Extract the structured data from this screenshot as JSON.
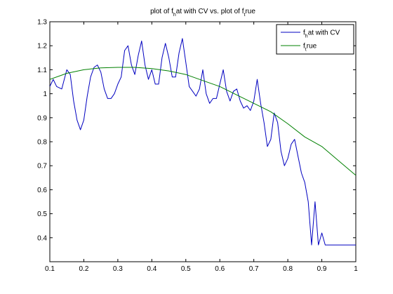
{
  "chart_data": {
    "type": "line",
    "title": {
      "parts": [
        {
          "text": "plot of f",
          "sub": false
        },
        {
          "text": "h",
          "sub": true
        },
        {
          "text": "at with CV vs. plot of f",
          "sub": false
        },
        {
          "text": "t",
          "sub": true
        },
        {
          "text": "rue",
          "sub": false
        }
      ]
    },
    "xlabel": "",
    "ylabel": "",
    "xlim": [
      0.1,
      1.0
    ],
    "ylim": [
      0.3,
      1.3
    ],
    "x_ticks": [
      0.1,
      0.2,
      0.3,
      0.4,
      0.5,
      0.6,
      0.7,
      0.8,
      0.9,
      1.0
    ],
    "x_tick_labels": [
      "0.1",
      "0.2",
      "0.3",
      "0.4",
      "0.5",
      "0.6",
      "0.7",
      "0.8",
      "0.9",
      "1"
    ],
    "y_ticks": [
      0.4,
      0.5,
      0.6,
      0.7,
      0.8,
      0.9,
      1.0,
      1.1,
      1.2,
      1.3
    ],
    "y_tick_labels": [
      "0.4",
      "0.5",
      "0.6",
      "0.7",
      "0.8",
      "0.9",
      "1",
      "1.1",
      "1.2",
      "1.3"
    ],
    "grid": false,
    "legend_position": "top-right",
    "series": [
      {
        "name": "f_hat with CV",
        "legend_parts": [
          {
            "text": "f",
            "sub": false
          },
          {
            "text": "h",
            "sub": true
          },
          {
            "text": "at with CV",
            "sub": false
          }
        ],
        "color": "#0000c0",
        "x": [
          0.1,
          0.11,
          0.12,
          0.135,
          0.15,
          0.16,
          0.17,
          0.18,
          0.19,
          0.2,
          0.21,
          0.22,
          0.23,
          0.24,
          0.25,
          0.26,
          0.27,
          0.28,
          0.29,
          0.3,
          0.31,
          0.32,
          0.33,
          0.34,
          0.35,
          0.36,
          0.37,
          0.38,
          0.39,
          0.4,
          0.41,
          0.42,
          0.43,
          0.44,
          0.45,
          0.46,
          0.47,
          0.48,
          0.49,
          0.5,
          0.51,
          0.52,
          0.53,
          0.54,
          0.55,
          0.56,
          0.57,
          0.58,
          0.59,
          0.6,
          0.61,
          0.62,
          0.63,
          0.64,
          0.65,
          0.66,
          0.67,
          0.68,
          0.69,
          0.7,
          0.71,
          0.72,
          0.73,
          0.74,
          0.75,
          0.76,
          0.77,
          0.78,
          0.79,
          0.8,
          0.81,
          0.82,
          0.83,
          0.84,
          0.85,
          0.86,
          0.87,
          0.88,
          0.89,
          0.9,
          0.91,
          0.92,
          0.93,
          0.94,
          0.95,
          0.96,
          0.97,
          0.98,
          0.99,
          0.995,
          1.0
        ],
        "y": [
          1.03,
          1.06,
          1.03,
          1.02,
          1.1,
          1.08,
          0.97,
          0.89,
          0.85,
          0.89,
          0.99,
          1.07,
          1.11,
          1.12,
          1.09,
          1.02,
          0.98,
          0.98,
          1.0,
          1.04,
          1.07,
          1.18,
          1.2,
          1.12,
          1.08,
          1.16,
          1.22,
          1.12,
          1.06,
          1.1,
          1.04,
          1.04,
          1.15,
          1.21,
          1.15,
          1.07,
          1.07,
          1.17,
          1.23,
          1.13,
          1.03,
          1.01,
          0.99,
          1.02,
          1.1,
          1.0,
          0.96,
          0.98,
          0.98,
          1.04,
          1.1,
          1.01,
          0.97,
          1.01,
          1.02,
          0.97,
          0.94,
          0.95,
          0.93,
          0.97,
          1.06,
          0.96,
          0.88,
          0.78,
          0.81,
          0.92,
          0.88,
          0.76,
          0.7,
          0.73,
          0.79,
          0.81,
          0.74,
          0.67,
          0.63,
          0.55,
          0.37,
          0.55,
          0.37,
          0.42,
          0.37,
          0.37,
          0.37,
          0.37,
          0.37,
          0.37,
          0.37,
          0.37,
          0.37,
          0.37,
          0.37
        ]
      },
      {
        "name": "f_true",
        "legend_parts": [
          {
            "text": "f",
            "sub": false
          },
          {
            "text": "t",
            "sub": true
          },
          {
            "text": "rue",
            "sub": false
          }
        ],
        "color": "#008000",
        "x": [
          0.1,
          0.15,
          0.2,
          0.25,
          0.3,
          0.35,
          0.4,
          0.45,
          0.5,
          0.55,
          0.6,
          0.65,
          0.7,
          0.75,
          0.8,
          0.85,
          0.9,
          0.95,
          1.0
        ],
        "y": [
          1.06,
          1.085,
          1.1,
          1.108,
          1.11,
          1.11,
          1.105,
          1.095,
          1.08,
          1.055,
          1.03,
          0.995,
          0.96,
          0.925,
          0.875,
          0.82,
          0.78,
          0.72,
          0.66
        ]
      }
    ]
  }
}
